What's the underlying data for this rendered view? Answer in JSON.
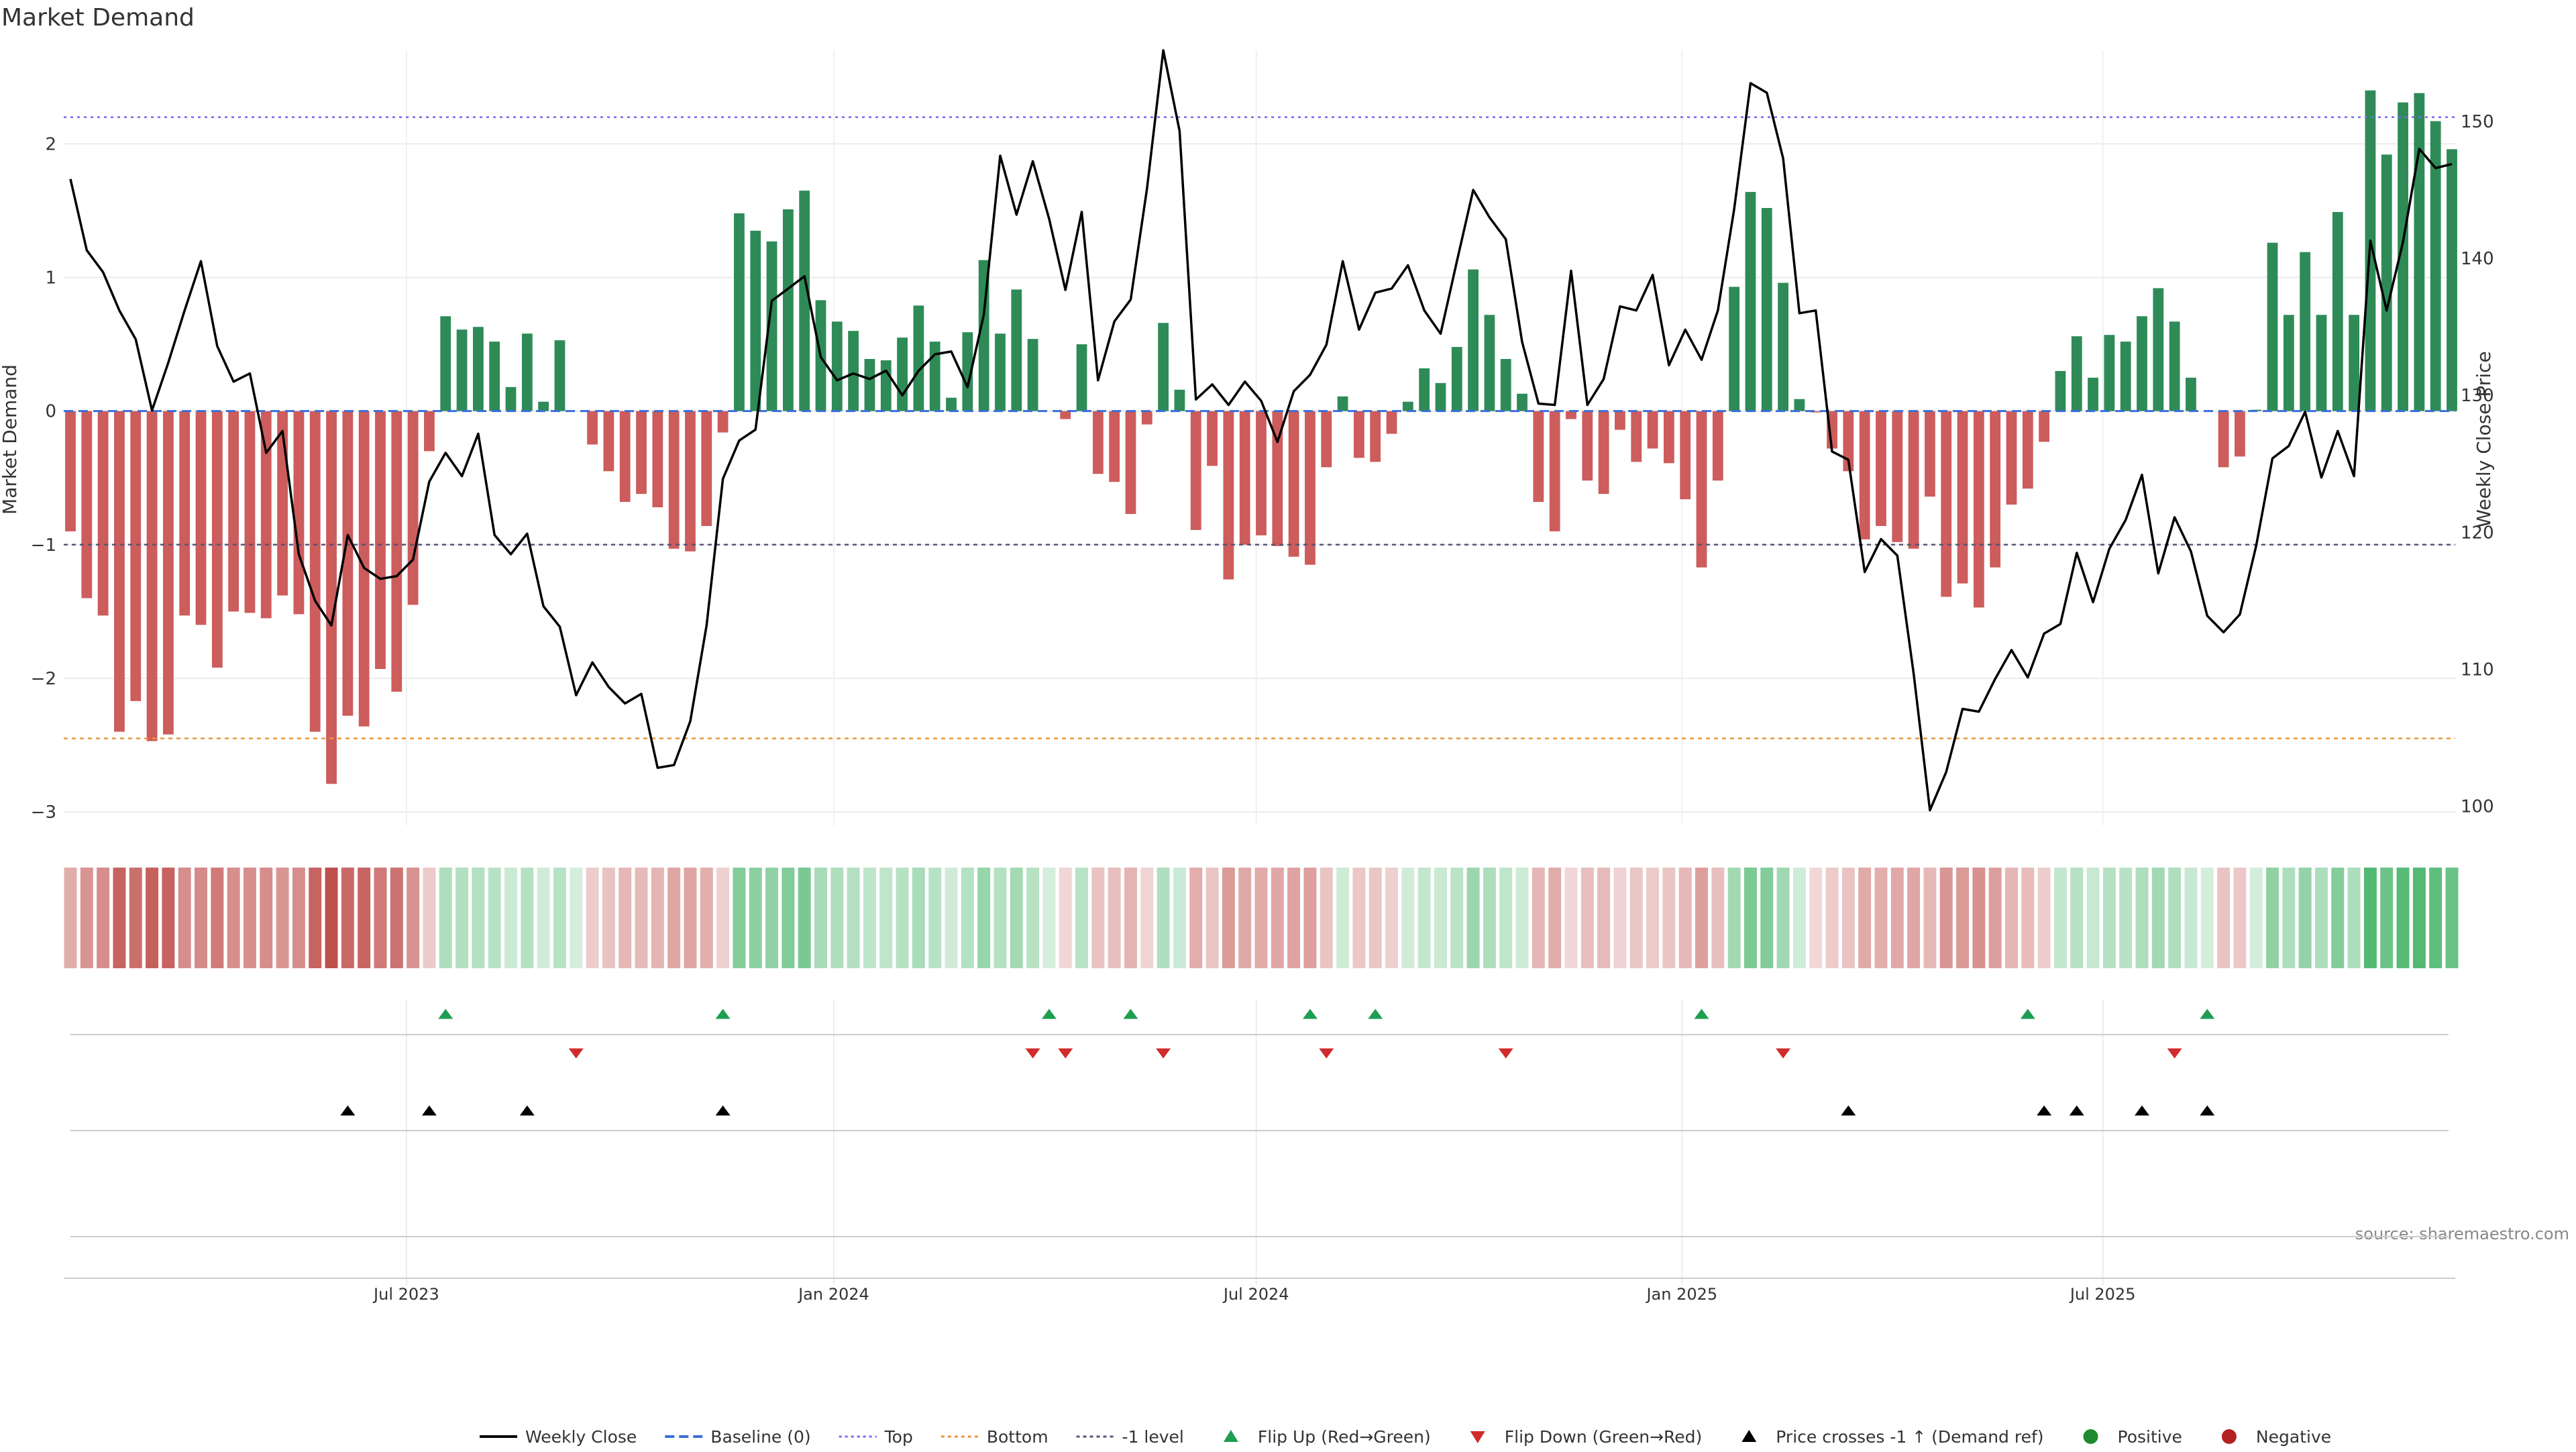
{
  "title": "Market Demand",
  "source": "source: sharemaestro.com",
  "chart_data": {
    "type": "bar+line",
    "title": "Market Demand",
    "y_left_label": "Market Demand",
    "y_right_label": "Weekly Close Price",
    "y_left_ticks": [
      "2",
      "1",
      "0",
      "−1",
      "−2",
      "−3"
    ],
    "y_left_tick_values": [
      2,
      1,
      0,
      -1,
      -2,
      -3
    ],
    "y_left_range": [
      -3.1,
      2.7
    ],
    "y_right_ticks": [
      "150",
      "140",
      "130",
      "120",
      "110",
      "100"
    ],
    "y_right_tick_values": [
      150,
      140,
      130,
      120,
      110,
      100
    ],
    "y_right_range": [
      98.6,
      155.2
    ],
    "x_ticks": [
      "Jul 2023",
      "Jan 2024",
      "Jul 2024",
      "Jan 2025",
      "Jul 2025"
    ],
    "x_tick_weeks": [
      20.6,
      46.8,
      72.7,
      98.8,
      124.6
    ],
    "reference_lines": {
      "top": 2.2,
      "bottom": -2.45,
      "minus_one_level": -1.0,
      "baseline": 0
    },
    "demand": [
      -0.9,
      -1.4,
      -1.53,
      -2.4,
      -2.17,
      -2.47,
      -2.42,
      -1.53,
      -1.6,
      -1.92,
      -1.5,
      -1.51,
      -1.55,
      -1.38,
      -1.52,
      -2.4,
      -2.79,
      -2.28,
      -2.36,
      -1.93,
      -2.1,
      -1.45,
      -0.3,
      0.71,
      0.61,
      0.63,
      0.52,
      0.18,
      0.58,
      0.07,
      0.53,
      0,
      -0.25,
      -0.45,
      -0.68,
      -0.62,
      -0.72,
      -1.03,
      -1.05,
      -0.86,
      -0.16,
      1.48,
      1.35,
      1.27,
      1.51,
      1.65,
      0.83,
      0.67,
      0.6,
      0.39,
      0.38,
      0.55,
      0.79,
      0.52,
      0.1,
      0.59,
      1.13,
      0.58,
      0.91,
      0.54,
      0,
      -0.06,
      0.5,
      -0.47,
      -0.53,
      -0.77,
      -0.1,
      0.66,
      0.16,
      -0.89,
      -0.41,
      -1.26,
      -1.0,
      -0.93,
      -1.01,
      -1.09,
      -1.15,
      -0.42,
      0.11,
      -0.35,
      -0.38,
      -0.17,
      0.07,
      0.32,
      0.21,
      0.48,
      1.06,
      0.72,
      0.39,
      0.13,
      -0.68,
      -0.9,
      -0.06,
      -0.52,
      -0.62,
      -0.14,
      -0.38,
      -0.28,
      -0.39,
      -0.66,
      -1.17,
      -0.52,
      0.93,
      1.64,
      1.52,
      0.96,
      0.09,
      -0.01,
      -0.28,
      -0.45,
      -0.96,
      -0.86,
      -0.98,
      -1.03,
      -0.64,
      -1.39,
      -1.29,
      -1.47,
      -1.17,
      -0.7,
      -0.58,
      -0.23,
      0.3,
      0.56,
      0.25,
      0.57,
      0.52,
      0.71,
      0.92,
      0.67,
      0.25,
      0,
      -0.42,
      -0.34,
      0.01,
      1.26,
      0.72,
      1.19,
      0.72,
      1.49,
      0.72,
      2.4,
      1.92,
      2.31,
      2.38,
      2.17,
      1.96
    ],
    "weekly_close": [
      145.8,
      140.6,
      139.0,
      136.2,
      134.1,
      128.9,
      132.4,
      136.2,
      139.8,
      133.6,
      131.0,
      131.6,
      125.8,
      127.4,
      118.4,
      115.0,
      113.2,
      119.8,
      117.4,
      116.6,
      116.8,
      118.0,
      123.7,
      125.8,
      124.1,
      127.2,
      119.8,
      118.4,
      119.9,
      114.6,
      113.1,
      108.1,
      110.5,
      108.7,
      107.5,
      108.2,
      102.8,
      103.0,
      106.2,
      113.2,
      123.9,
      126.7,
      127.5,
      136.9,
      137.8,
      138.7,
      132.8,
      131.1,
      131.6,
      131.2,
      131.8,
      130.0,
      131.8,
      133.0,
      133.2,
      130.6,
      135.9,
      147.5,
      143.2,
      147.1,
      142.9,
      137.7,
      143.4,
      131.1,
      135.4,
      137.0,
      145.1,
      155.2,
      149.3,
      129.7,
      130.8,
      129.3,
      131.0,
      129.6,
      126.6,
      130.3,
      131.5,
      133.7,
      139.8,
      134.8,
      137.5,
      137.8,
      139.5,
      136.2,
      134.5,
      139.8,
      145.0,
      143.0,
      141.4,
      133.9,
      129.4,
      129.3,
      139.1,
      129.3,
      131.2,
      136.5,
      136.2,
      138.8,
      132.2,
      134.8,
      132.6,
      136.2,
      143.6,
      152.8,
      152.1,
      147.3,
      136.0,
      136.2,
      125.9,
      125.3,
      117.1,
      119.5,
      118.3,
      109.7,
      99.7,
      102.5,
      107.1,
      106.9,
      109.3,
      111.4,
      109.4,
      112.6,
      113.3,
      118.5,
      114.9,
      118.8,
      120.9,
      124.2,
      117.0,
      121.1,
      118.6,
      113.9,
      112.7,
      114.0,
      119.0,
      125.4,
      126.3,
      128.8,
      124.0,
      127.4,
      124.1,
      141.3,
      136.2,
      141.2,
      148.0,
      146.6,
      146.9
    ],
    "flip_up_weeks": [
      23,
      40,
      60,
      65,
      76,
      80,
      100,
      120,
      131
    ],
    "flip_down_weeks": [
      31,
      59,
      61,
      67,
      77,
      88,
      105,
      129
    ],
    "price_cross_weeks": [
      17,
      22,
      28,
      40,
      109,
      121,
      123,
      127,
      131
    ],
    "legend": [
      "Weekly Close",
      "Baseline (0)",
      "Top",
      "Bottom",
      "-1 level",
      "Flip Up (Red→Green)",
      "Flip Down (Green→Red)",
      "Price crosses -1 ↑ (Demand ref)",
      "Positive",
      "Negative"
    ],
    "colors": {
      "positive": "#2e8b57",
      "negative": "#cd5c5c",
      "price_line": "#000000",
      "baseline": "#3a6fd8",
      "top": "#7b68ee",
      "bottom": "#e8963a",
      "minus_one": "#555577",
      "flip_up": "#1e9e50",
      "flip_down": "#d12b2b",
      "price_cross": "#000000",
      "positive_dot": "#1e8a30",
      "negative_dot": "#b22222"
    }
  }
}
